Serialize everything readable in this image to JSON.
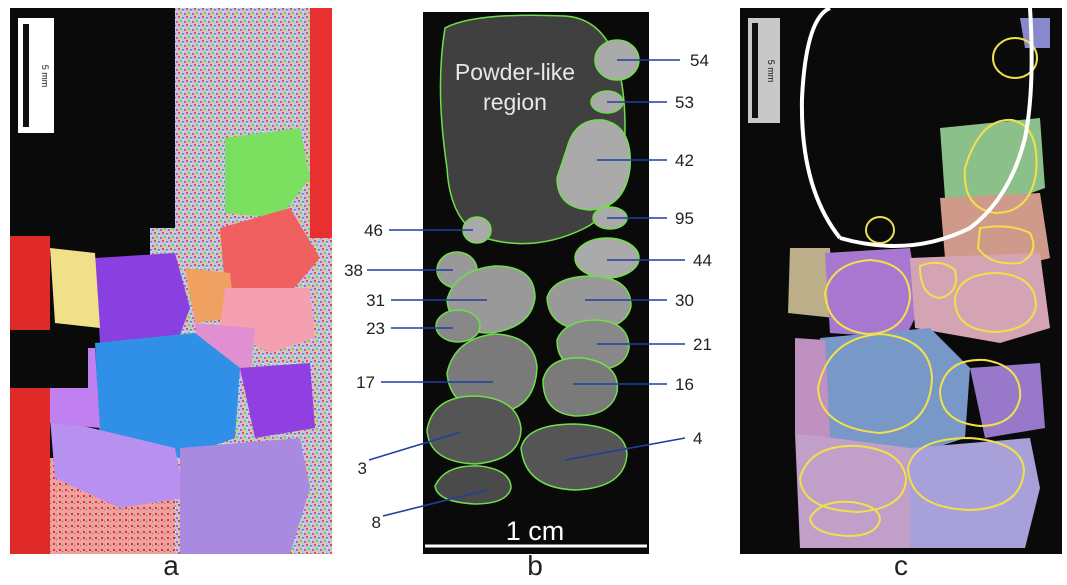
{
  "panels": [
    {
      "id": "a",
      "letter": "a",
      "scale_bar": "5 mm"
    },
    {
      "id": "b",
      "letter": "b",
      "region_label_line1": "Powder-like",
      "region_label_line2": "region",
      "scale_bar": "1 cm"
    },
    {
      "id": "c",
      "letter": "c",
      "scale_bar": "5 mm"
    }
  ],
  "grain_labels": [
    "54",
    "53",
    "42",
    "95",
    "46",
    "44",
    "38",
    "31",
    "30",
    "23",
    "21",
    "17",
    "16",
    "3",
    "4",
    "8"
  ],
  "colors": {
    "background_black": "#0a0a0a",
    "grain_outline_green": "#6fe04a",
    "grain_boundary_yellow": "#f2e04a",
    "boundary_white": "#ffffff",
    "leader_blue": "#1f3f9e"
  }
}
